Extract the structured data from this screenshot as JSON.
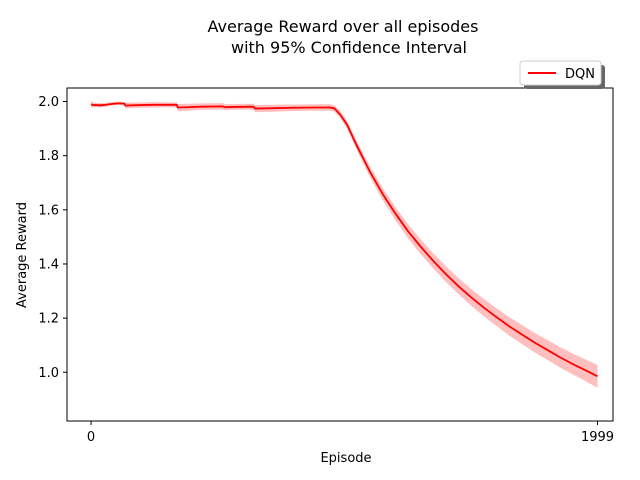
{
  "chart_data": {
    "type": "line",
    "title_line1": "Average Reward over all episodes",
    "title_line2": "with 95% Confidence Interval",
    "xlabel": "Episode",
    "ylabel": "Average Reward",
    "xlim": [
      -95,
      2060
    ],
    "ylim": [
      0.82,
      2.05
    ],
    "x_ticks": [
      0,
      1999
    ],
    "x_tick_labels": [
      "0",
      "1999"
    ],
    "y_ticks": [
      1.0,
      1.2,
      1.4,
      1.6,
      1.8,
      2.0
    ],
    "y_tick_labels": [
      "1.0",
      "1.2",
      "1.4",
      "1.6",
      "1.8",
      "2.0"
    ],
    "grid": false,
    "legend_position": "top-right outside",
    "series": [
      {
        "name": "DQN",
        "color": "#ff0000",
        "band_color": "#ff0000",
        "points": [
          [
            0,
            1.99
          ],
          [
            8,
            1.987
          ],
          [
            20,
            1.987
          ],
          [
            40,
            1.986
          ],
          [
            60,
            1.988
          ],
          [
            80,
            1.991
          ],
          [
            100,
            1.993
          ],
          [
            120,
            1.993
          ],
          [
            132,
            1.992
          ],
          [
            135,
            1.985
          ],
          [
            160,
            1.986
          ],
          [
            200,
            1.987
          ],
          [
            250,
            1.988
          ],
          [
            300,
            1.988
          ],
          [
            338,
            1.988
          ],
          [
            342,
            1.978
          ],
          [
            380,
            1.979
          ],
          [
            430,
            1.981
          ],
          [
            520,
            1.982
          ],
          [
            528,
            1.979
          ],
          [
            560,
            1.98
          ],
          [
            640,
            1.981
          ],
          [
            648,
            1.974
          ],
          [
            700,
            1.975
          ],
          [
            800,
            1.977
          ],
          [
            900,
            1.978
          ],
          [
            940,
            1.978
          ],
          [
            960,
            1.975
          ],
          [
            985,
            1.95
          ],
          [
            1010,
            1.915
          ],
          [
            1050,
            1.835
          ],
          [
            1100,
            1.742
          ],
          [
            1150,
            1.66
          ],
          [
            1200,
            1.588
          ],
          [
            1250,
            1.522
          ],
          [
            1300,
            1.465
          ],
          [
            1350,
            1.412
          ],
          [
            1400,
            1.363
          ],
          [
            1450,
            1.318
          ],
          [
            1500,
            1.277
          ],
          [
            1550,
            1.239
          ],
          [
            1600,
            1.204
          ],
          [
            1650,
            1.17
          ],
          [
            1700,
            1.14
          ],
          [
            1750,
            1.11
          ],
          [
            1800,
            1.083
          ],
          [
            1850,
            1.056
          ],
          [
            1900,
            1.031
          ],
          [
            1950,
            1.008
          ],
          [
            1999,
            0.985
          ]
        ],
        "ci_halfwidth": [
          0.012,
          0.009,
          0.008,
          0.008,
          0.007,
          0.006,
          0.006,
          0.006,
          0.006,
          0.011,
          0.01,
          0.01,
          0.01,
          0.009,
          0.009,
          0.013,
          0.013,
          0.012,
          0.012,
          0.011,
          0.011,
          0.011,
          0.013,
          0.013,
          0.012,
          0.012,
          0.012,
          0.012,
          0.013,
          0.014,
          0.017,
          0.02,
          0.022,
          0.024,
          0.026,
          0.027,
          0.028,
          0.029,
          0.03,
          0.031,
          0.032,
          0.033,
          0.034,
          0.035,
          0.036,
          0.037,
          0.038,
          0.039,
          0.04,
          0.042
        ]
      }
    ]
  }
}
